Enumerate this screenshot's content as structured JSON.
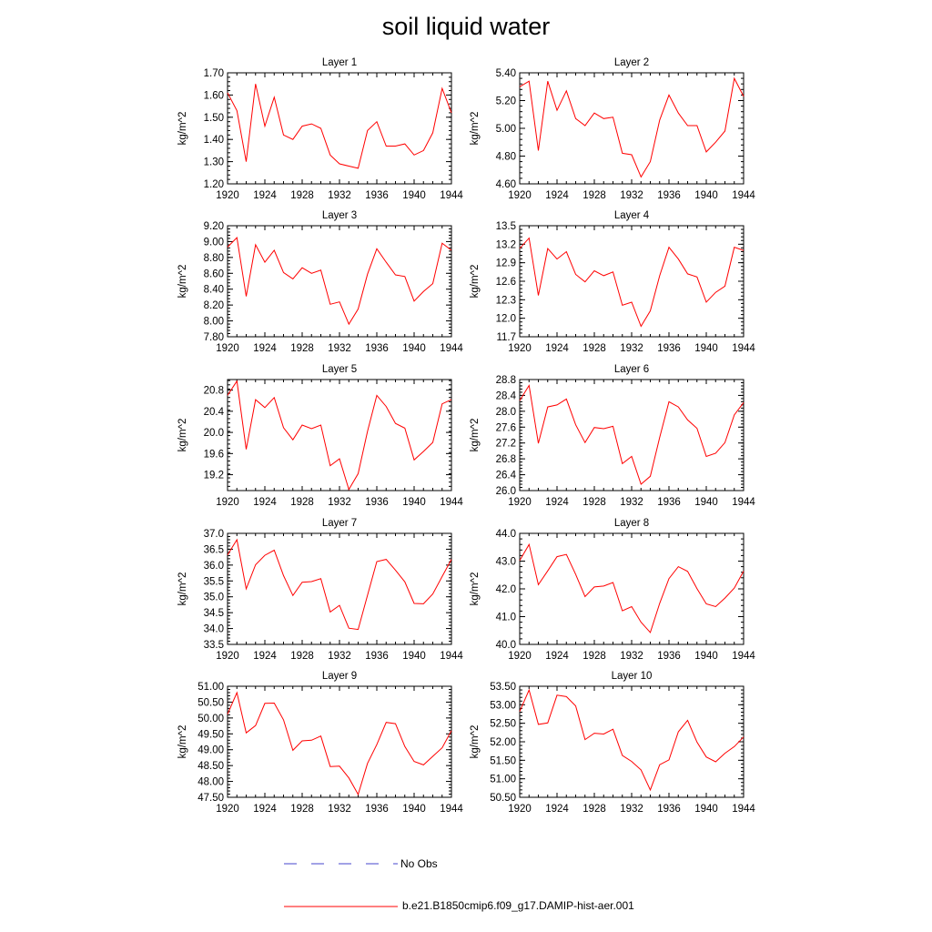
{
  "title": "soil liquid water",
  "legend": {
    "items": [
      {
        "label": "No Obs",
        "color": "#4444cc",
        "dash": true
      },
      {
        "label": "b.e21.B1850cmip6.f09_g17.DAMIP-hist-aer.001",
        "color": "#ff0000",
        "dash": false
      }
    ]
  },
  "chart_data": [
    {
      "type": "line",
      "title": "Layer 1",
      "ylabel": "kg/m^2",
      "x": [
        1920,
        1921,
        1922,
        1923,
        1924,
        1925,
        1926,
        1927,
        1928,
        1929,
        1930,
        1931,
        1932,
        1933,
        1934,
        1935,
        1936,
        1937,
        1938,
        1939,
        1940,
        1941,
        1942,
        1943,
        1944
      ],
      "xlim": [
        1920,
        1944
      ],
      "xticks": [
        1920,
        1924,
        1928,
        1932,
        1936,
        1940,
        1944
      ],
      "ylim": [
        1.2,
        1.7
      ],
      "yticks": [
        1.2,
        1.3,
        1.4,
        1.5,
        1.6,
        1.7
      ],
      "ydec": 2,
      "series": [
        {
          "name": "b.e21.B1850cmip6.f09_g17.DAMIP-hist-aer.001",
          "color": "#ff0000",
          "values": [
            1.61,
            1.53,
            1.3,
            1.65,
            1.46,
            1.59,
            1.42,
            1.4,
            1.46,
            1.47,
            1.45,
            1.33,
            1.29,
            1.28,
            1.27,
            1.44,
            1.48,
            1.37,
            1.37,
            1.38,
            1.33,
            1.35,
            1.43,
            1.63,
            1.52
          ]
        }
      ]
    },
    {
      "type": "line",
      "title": "Layer 2",
      "ylabel": "kg/m^2",
      "x": [
        1920,
        1921,
        1922,
        1923,
        1924,
        1925,
        1926,
        1927,
        1928,
        1929,
        1930,
        1931,
        1932,
        1933,
        1934,
        1935,
        1936,
        1937,
        1938,
        1939,
        1940,
        1941,
        1942,
        1943,
        1944
      ],
      "xlim": [
        1920,
        1944
      ],
      "xticks": [
        1920,
        1924,
        1928,
        1932,
        1936,
        1940,
        1944
      ],
      "ylim": [
        4.6,
        5.4
      ],
      "yticks": [
        4.6,
        4.8,
        5.0,
        5.2,
        5.4
      ],
      "ydec": 2,
      "series": [
        {
          "name": "b.e21.B1850cmip6.f09_g17.DAMIP-hist-aer.001",
          "color": "#ff0000",
          "values": [
            5.3,
            5.34,
            4.84,
            5.34,
            5.13,
            5.27,
            5.07,
            5.02,
            5.11,
            5.07,
            5.08,
            4.82,
            4.81,
            4.65,
            4.76,
            5.06,
            5.24,
            5.11,
            5.02,
            5.02,
            4.83,
            4.9,
            4.98,
            5.36,
            5.23
          ]
        }
      ]
    },
    {
      "type": "line",
      "title": "Layer 3",
      "ylabel": "kg/m^2",
      "x": [
        1920,
        1921,
        1922,
        1923,
        1924,
        1925,
        1926,
        1927,
        1928,
        1929,
        1930,
        1931,
        1932,
        1933,
        1934,
        1935,
        1936,
        1937,
        1938,
        1939,
        1940,
        1941,
        1942,
        1943,
        1944
      ],
      "xlim": [
        1920,
        1944
      ],
      "xticks": [
        1920,
        1924,
        1928,
        1932,
        1936,
        1940,
        1944
      ],
      "ylim": [
        7.8,
        9.2
      ],
      "yticks": [
        7.8,
        8.0,
        8.2,
        8.4,
        8.6,
        8.8,
        9.0,
        9.2
      ],
      "ydec": 2,
      "series": [
        {
          "name": "b.e21.B1850cmip6.f09_g17.DAMIP-hist-aer.001",
          "color": "#ff0000",
          "values": [
            8.93,
            9.05,
            8.31,
            8.96,
            8.74,
            8.89,
            8.61,
            8.53,
            8.67,
            8.6,
            8.64,
            8.21,
            8.24,
            7.96,
            8.15,
            8.59,
            8.91,
            8.74,
            8.58,
            8.56,
            8.25,
            8.37,
            8.47,
            8.98,
            8.89
          ]
        }
      ]
    },
    {
      "type": "line",
      "title": "Layer 4",
      "ylabel": "kg/m^2",
      "x": [
        1920,
        1921,
        1922,
        1923,
        1924,
        1925,
        1926,
        1927,
        1928,
        1929,
        1930,
        1931,
        1932,
        1933,
        1934,
        1935,
        1936,
        1937,
        1938,
        1939,
        1940,
        1941,
        1942,
        1943,
        1944
      ],
      "xlim": [
        1920,
        1944
      ],
      "xticks": [
        1920,
        1924,
        1928,
        1932,
        1936,
        1940,
        1944
      ],
      "ylim": [
        11.7,
        13.5
      ],
      "yticks": [
        11.7,
        12.0,
        12.3,
        12.6,
        12.9,
        13.2,
        13.5
      ],
      "ydec": 1,
      "series": [
        {
          "name": "b.e21.B1850cmip6.f09_g17.DAMIP-hist-aer.001",
          "color": "#ff0000",
          "values": [
            13.13,
            13.3,
            12.37,
            13.13,
            12.96,
            13.08,
            12.71,
            12.59,
            12.77,
            12.69,
            12.75,
            12.21,
            12.26,
            11.87,
            12.12,
            12.69,
            13.15,
            12.96,
            12.72,
            12.67,
            12.26,
            12.42,
            12.52,
            13.15,
            13.1
          ]
        }
      ]
    },
    {
      "type": "line",
      "title": "Layer 5",
      "ylabel": "kg/m^2",
      "x": [
        1920,
        1921,
        1922,
        1923,
        1924,
        1925,
        1926,
        1927,
        1928,
        1929,
        1930,
        1931,
        1932,
        1933,
        1934,
        1935,
        1936,
        1937,
        1938,
        1939,
        1940,
        1941,
        1942,
        1943,
        1944
      ],
      "xlim": [
        1920,
        1944
      ],
      "xticks": [
        1920,
        1924,
        1928,
        1932,
        1936,
        1940,
        1944
      ],
      "ylim": [
        18.9,
        21.0
      ],
      "yticks": [
        19.2,
        19.6,
        20.0,
        20.4,
        20.8
      ],
      "ydec": 1,
      "series": [
        {
          "name": "b.e21.B1850cmip6.f09_g17.DAMIP-hist-aer.001",
          "color": "#ff0000",
          "values": [
            20.7,
            20.97,
            19.68,
            20.62,
            20.47,
            20.66,
            20.09,
            19.86,
            20.14,
            20.07,
            20.14,
            19.37,
            19.5,
            18.92,
            19.22,
            20.02,
            20.7,
            20.49,
            20.17,
            20.08,
            19.48,
            19.64,
            19.81,
            20.54,
            20.62
          ]
        }
      ]
    },
    {
      "type": "line",
      "title": "Layer 6",
      "ylabel": "kg/m^2",
      "x": [
        1920,
        1921,
        1922,
        1923,
        1924,
        1925,
        1926,
        1927,
        1928,
        1929,
        1930,
        1931,
        1932,
        1933,
        1934,
        1935,
        1936,
        1937,
        1938,
        1939,
        1940,
        1941,
        1942,
        1943,
        1944
      ],
      "xlim": [
        1920,
        1944
      ],
      "xticks": [
        1920,
        1924,
        1928,
        1932,
        1936,
        1940,
        1944
      ],
      "ylim": [
        26.0,
        28.8
      ],
      "yticks": [
        26.0,
        26.4,
        26.8,
        27.2,
        27.6,
        28.0,
        28.4,
        28.8
      ],
      "ydec": 1,
      "series": [
        {
          "name": "b.e21.B1850cmip6.f09_g17.DAMIP-hist-aer.001",
          "color": "#ff0000",
          "values": [
            28.27,
            28.65,
            27.19,
            28.11,
            28.16,
            28.31,
            27.66,
            27.21,
            27.59,
            27.56,
            27.62,
            26.68,
            26.86,
            26.16,
            26.36,
            27.34,
            28.24,
            28.11,
            27.78,
            27.57,
            26.86,
            26.94,
            27.21,
            27.91,
            28.22
          ]
        }
      ]
    },
    {
      "type": "line",
      "title": "Layer 7",
      "ylabel": "kg/m^2",
      "x": [
        1920,
        1921,
        1922,
        1923,
        1924,
        1925,
        1926,
        1927,
        1928,
        1929,
        1930,
        1931,
        1932,
        1933,
        1934,
        1935,
        1936,
        1937,
        1938,
        1939,
        1940,
        1941,
        1942,
        1943,
        1944
      ],
      "xlim": [
        1920,
        1944
      ],
      "xticks": [
        1920,
        1924,
        1928,
        1932,
        1936,
        1940,
        1944
      ],
      "ylim": [
        33.5,
        37.0
      ],
      "yticks": [
        33.5,
        34.0,
        34.5,
        35.0,
        35.5,
        36.0,
        36.5,
        37.0
      ],
      "ydec": 1,
      "series": [
        {
          "name": "b.e21.B1850cmip6.f09_g17.DAMIP-hist-aer.001",
          "color": "#ff0000",
          "values": [
            36.32,
            36.8,
            35.25,
            36.01,
            36.31,
            36.47,
            35.67,
            35.04,
            35.46,
            35.48,
            35.57,
            34.52,
            34.73,
            34.01,
            33.97,
            35.05,
            36.11,
            36.18,
            35.84,
            35.47,
            34.79,
            34.78,
            35.09,
            35.64,
            36.18
          ]
        }
      ]
    },
    {
      "type": "line",
      "title": "Layer 8",
      "ylabel": "kg/m^2",
      "x": [
        1920,
        1921,
        1922,
        1923,
        1924,
        1925,
        1926,
        1927,
        1928,
        1929,
        1930,
        1931,
        1932,
        1933,
        1934,
        1935,
        1936,
        1937,
        1938,
        1939,
        1940,
        1941,
        1942,
        1943,
        1944
      ],
      "xlim": [
        1920,
        1944
      ],
      "xticks": [
        1920,
        1924,
        1928,
        1932,
        1936,
        1940,
        1944
      ],
      "ylim": [
        40.0,
        44.0
      ],
      "yticks": [
        40.0,
        41.0,
        42.0,
        43.0,
        44.0
      ],
      "ydec": 1,
      "series": [
        {
          "name": "b.e21.B1850cmip6.f09_g17.DAMIP-hist-aer.001",
          "color": "#ff0000",
          "values": [
            43.02,
            43.6,
            42.15,
            42.65,
            43.16,
            43.24,
            42.52,
            41.72,
            42.07,
            42.1,
            42.23,
            41.21,
            41.36,
            40.8,
            40.43,
            41.48,
            42.37,
            42.8,
            42.63,
            42.01,
            41.46,
            41.36,
            41.67,
            42.03,
            42.64
          ]
        }
      ]
    },
    {
      "type": "line",
      "title": "Layer 9",
      "ylabel": "kg/m^2",
      "x": [
        1920,
        1921,
        1922,
        1923,
        1924,
        1925,
        1926,
        1927,
        1928,
        1929,
        1930,
        1931,
        1932,
        1933,
        1934,
        1935,
        1936,
        1937,
        1938,
        1939,
        1940,
        1941,
        1942,
        1943,
        1944
      ],
      "xlim": [
        1920,
        1944
      ],
      "xticks": [
        1920,
        1924,
        1928,
        1932,
        1936,
        1940,
        1944
      ],
      "ylim": [
        47.5,
        51.0
      ],
      "yticks": [
        47.5,
        48.0,
        48.5,
        49.0,
        49.5,
        50.0,
        50.5,
        51.0
      ],
      "ydec": 2,
      "series": [
        {
          "name": "b.e21.B1850cmip6.f09_g17.DAMIP-hist-aer.001",
          "color": "#ff0000",
          "values": [
            50.12,
            50.8,
            49.53,
            49.76,
            50.46,
            50.47,
            49.94,
            48.98,
            49.28,
            49.3,
            49.43,
            48.47,
            48.48,
            48.11,
            47.59,
            48.57,
            49.16,
            49.86,
            49.82,
            49.1,
            48.63,
            48.52,
            48.79,
            49.06,
            49.6
          ]
        }
      ]
    },
    {
      "type": "line",
      "title": "Layer 10",
      "ylabel": "kg/m^2",
      "x": [
        1920,
        1921,
        1922,
        1923,
        1924,
        1925,
        1926,
        1927,
        1928,
        1929,
        1930,
        1931,
        1932,
        1933,
        1934,
        1935,
        1936,
        1937,
        1938,
        1939,
        1940,
        1941,
        1942,
        1943,
        1944
      ],
      "xlim": [
        1920,
        1944
      ],
      "xticks": [
        1920,
        1924,
        1928,
        1932,
        1936,
        1940,
        1944
      ],
      "ylim": [
        50.5,
        53.5
      ],
      "yticks": [
        50.5,
        51.0,
        51.5,
        52.0,
        52.5,
        53.0,
        53.5
      ],
      "ydec": 2,
      "series": [
        {
          "name": "b.e21.B1850cmip6.f09_g17.DAMIP-hist-aer.001",
          "color": "#ff0000",
          "values": [
            52.82,
            53.4,
            52.47,
            52.51,
            53.26,
            53.22,
            52.97,
            52.06,
            52.23,
            52.21,
            52.34,
            51.63,
            51.47,
            51.24,
            50.7,
            51.38,
            51.51,
            52.27,
            52.58,
            51.99,
            51.59,
            51.46,
            51.69,
            51.87,
            52.13
          ]
        }
      ]
    }
  ]
}
